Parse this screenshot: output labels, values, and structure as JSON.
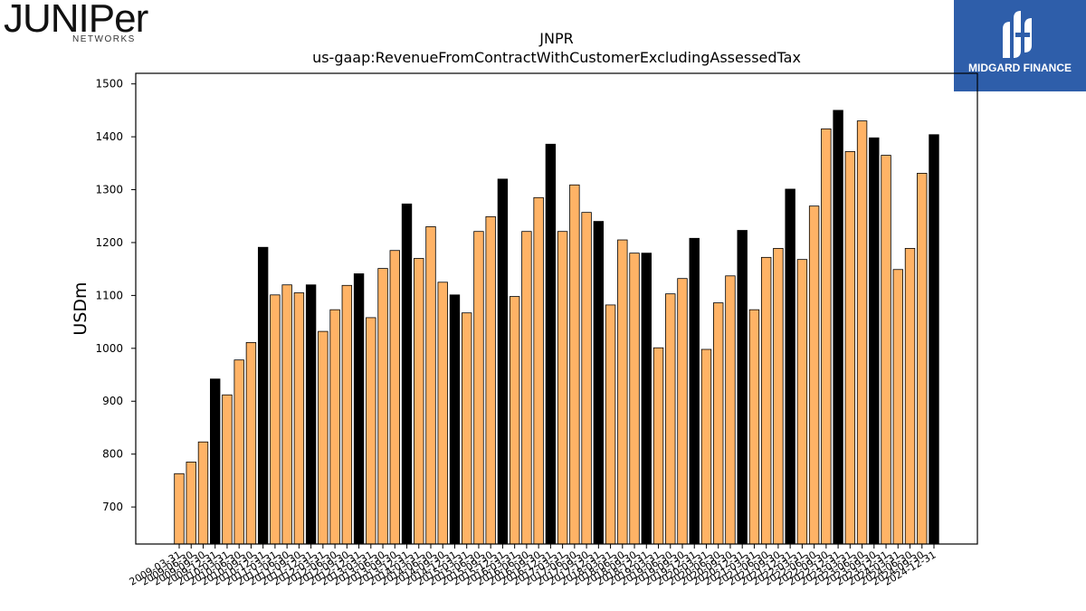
{
  "logos": {
    "juniper": {
      "wordmark": "JUNIPer",
      "sub": "NETWORKS"
    },
    "midgard": {
      "name": "MIDGARD FINANCE",
      "color": "#2e5eaa"
    }
  },
  "chart_data": {
    "type": "bar",
    "title": "JNPR",
    "subtitle": "us-gaap:RevenueFromContractWithCustomerExcludingAssessedTax",
    "ylabel": "USDm",
    "xlabel": "",
    "ylim": [
      630,
      1520
    ],
    "yticks": [
      700,
      800,
      900,
      1000,
      1100,
      1200,
      1300,
      1400,
      1500
    ],
    "colors": {
      "quarter": "#ffb366",
      "fiscal_year_end": "#000000"
    },
    "categories": [
      "2009-03-31",
      "2009-06-30",
      "2009-09-30",
      "2009-12-31",
      "2010-03-31",
      "2010-06-30",
      "2010-09-30",
      "2010-12-31",
      "2011-03-31",
      "2011-06-30",
      "2011-09-30",
      "2011-12-31",
      "2012-03-31",
      "2012-06-30",
      "2012-09-30",
      "2012-12-31",
      "2013-03-31",
      "2013-06-30",
      "2013-09-30",
      "2013-12-31",
      "2014-03-31",
      "2014-06-30",
      "2014-09-30",
      "2014-12-31",
      "2015-03-31",
      "2015-06-30",
      "2015-09-30",
      "2015-12-31",
      "2016-03-31",
      "2016-06-30",
      "2016-09-30",
      "2016-12-31",
      "2017-03-31",
      "2017-06-30",
      "2017-09-30",
      "2017-12-31",
      "2018-03-31",
      "2018-06-30",
      "2018-09-30",
      "2018-12-31",
      "2019-03-31",
      "2019-06-30",
      "2019-09-30",
      "2019-12-31",
      "2020-03-31",
      "2020-06-30",
      "2020-09-30",
      "2020-12-31",
      "2021-03-31",
      "2021-06-30",
      "2021-09-30",
      "2021-12-31",
      "2022-03-31",
      "2022-06-30",
      "2022-09-30",
      "2022-12-31",
      "2023-03-31",
      "2023-06-30",
      "2023-09-30",
      "2023-12-31",
      "2024-03-31",
      "2024-06-30",
      "2024-09-30",
      "2024-12-31"
    ],
    "values": [
      763,
      785,
      823,
      942,
      912,
      978,
      1011,
      1191,
      1101,
      1120,
      1105,
      1120,
      1032,
      1073,
      1119,
      1141,
      1058,
      1151,
      1185,
      1273,
      1170,
      1230,
      1125,
      1101,
      1067,
      1221,
      1249,
      1320,
      1098,
      1221,
      1285,
      1386,
      1221,
      1309,
      1257,
      1240,
      1082,
      1205,
      1180,
      1180,
      1001,
      1103,
      1132,
      1208,
      998,
      1086,
      1137,
      1223,
      1073,
      1172,
      1189,
      1301,
      1168,
      1269,
      1415,
      1450,
      1372,
      1430,
      1398,
      1365,
      1149,
      1189,
      1331,
      1404
    ]
  }
}
